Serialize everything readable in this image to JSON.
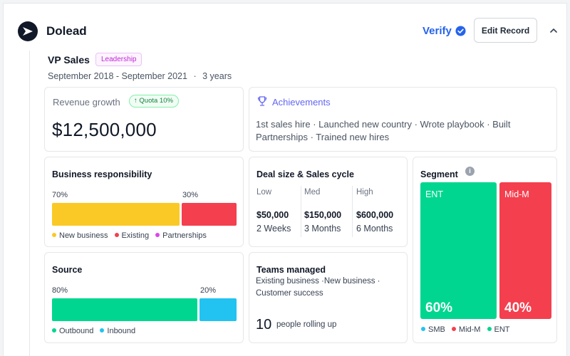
{
  "company": {
    "name": "Dolead",
    "logo_icon": "dolead-logo-icon"
  },
  "header": {
    "verify_label": "Verify",
    "verify_icon": "verified-badge-icon",
    "edit_button_label": "Edit Record",
    "collapse_icon": "chevron-up-icon"
  },
  "role": {
    "title": "VP Sales",
    "tag": "Leadership",
    "dates": "September 2018 - September 2021",
    "separator": "·",
    "duration": "3 years"
  },
  "revenue": {
    "label": "Revenue growth",
    "quota_badge": "Quota 10%",
    "quota_icon": "arrow-up-icon",
    "value": "$12,500,000"
  },
  "achievements": {
    "title": "Achievements",
    "icon": "trophy-icon",
    "text": "1st sales hire · Launched new country · Wrote playbook · Built Partnerships · Trained new hires"
  },
  "business_responsibility": {
    "title": "Business responsibility",
    "segments": [
      {
        "label": "70%",
        "value": 0.7,
        "color": "#fbc925"
      },
      {
        "label": "30%",
        "value": 0.3,
        "color": "#f43f4e"
      }
    ],
    "legend": [
      {
        "label": "New business",
        "color": "#fbc925"
      },
      {
        "label": "Existing",
        "color": "#f43f4e"
      },
      {
        "label": "Partnerships",
        "color": "#d946ef"
      }
    ]
  },
  "deal": {
    "title": "Deal size & Sales cycle",
    "columns": [
      {
        "head": "Low",
        "size": "$50,000",
        "cycle": "2 Weeks"
      },
      {
        "head": "Med",
        "size": "$150,000",
        "cycle": "3 Months"
      },
      {
        "head": "High",
        "size": "$600,000",
        "cycle": "6 Months"
      }
    ]
  },
  "segment": {
    "title": "Segment",
    "info_icon": "info-icon",
    "blocks": [
      {
        "name": "ENT",
        "pct": "60%",
        "value": 0.6,
        "color": "#00d68f"
      },
      {
        "name": "Mid-M",
        "pct": "40%",
        "value": 0.4,
        "color": "#f43f4e"
      }
    ],
    "legend": [
      {
        "label": "SMB",
        "color": "#22c3f0"
      },
      {
        "label": "Mid-M",
        "color": "#f43f4e"
      },
      {
        "label": "ENT",
        "color": "#00d68f"
      }
    ]
  },
  "source": {
    "title": "Source",
    "segments": [
      {
        "label": "80%",
        "value": 0.8,
        "color": "#00d68f"
      },
      {
        "label": "20%",
        "value": 0.2,
        "color": "#22c3f0"
      }
    ],
    "legend": [
      {
        "label": "Outbound",
        "color": "#00d68f"
      },
      {
        "label": "Inbound",
        "color": "#22c3f0"
      }
    ]
  },
  "teams": {
    "title": "Teams managed",
    "description": "Existing business ·New business · Customer success",
    "count": "10",
    "count_label": "people rolling up"
  }
}
